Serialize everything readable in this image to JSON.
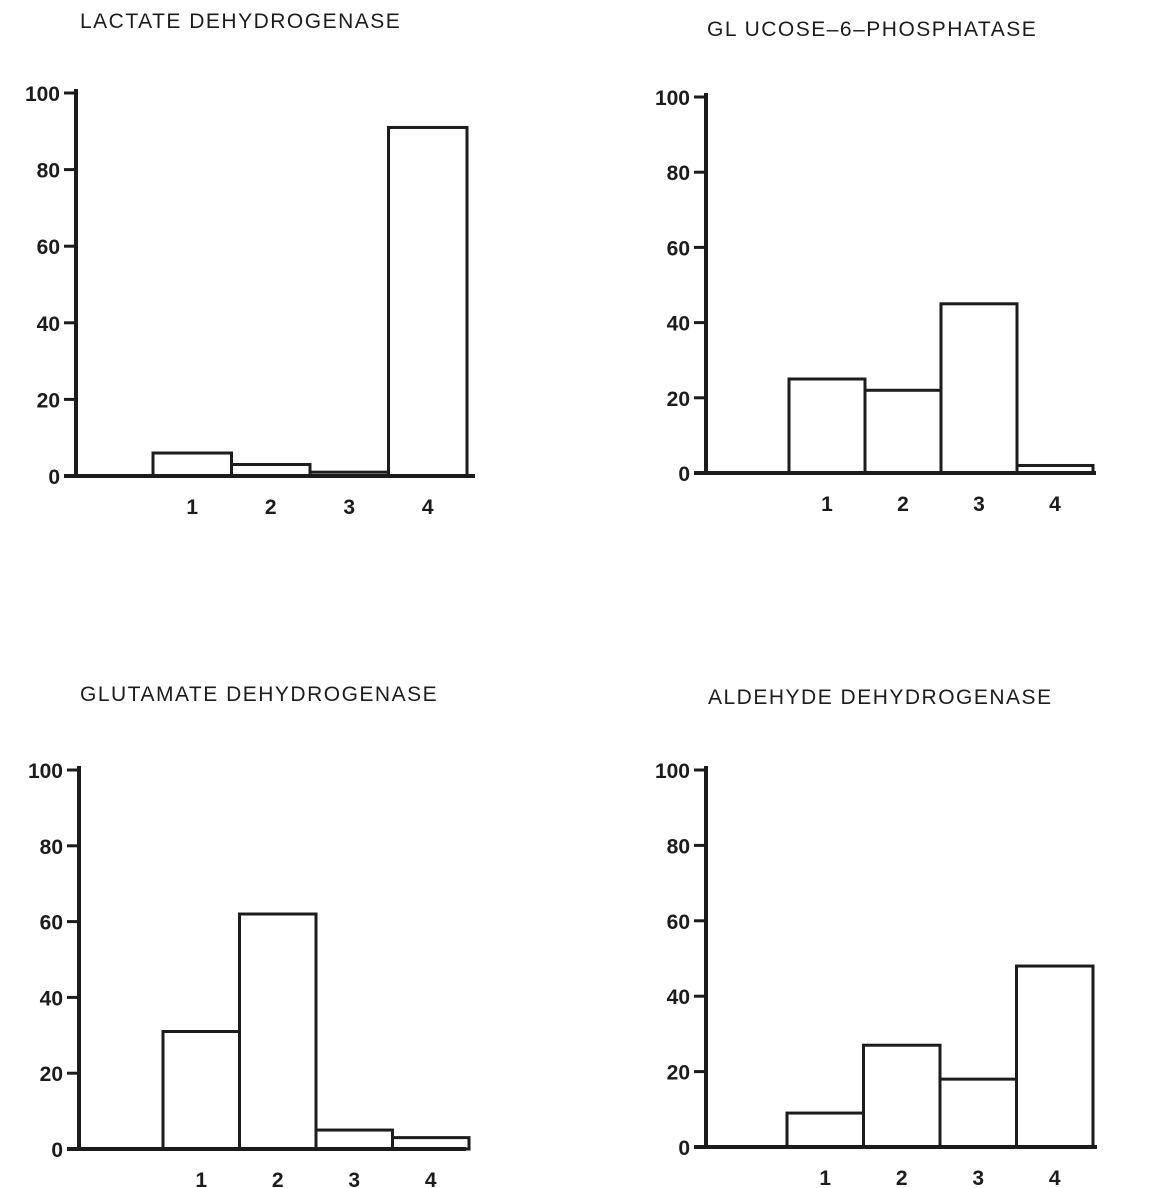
{
  "chart_data": [
    {
      "type": "bar",
      "title": "LACTATE DEHYDROGENASE",
      "categories": [
        "1",
        "2",
        "3",
        "4"
      ],
      "values": [
        6,
        3,
        1,
        91
      ],
      "yticks": [
        "0",
        "20",
        "40",
        "60",
        "80",
        "100"
      ],
      "ylim": [
        0,
        100
      ],
      "xlabel": "",
      "ylabel": "",
      "grid": false
    },
    {
      "type": "bar",
      "title": "GL UCOSE–6–PHOSPHATASE",
      "categories": [
        "1",
        "2",
        "3",
        "4"
      ],
      "values": [
        25,
        22,
        45,
        2
      ],
      "yticks": [
        "0",
        "20",
        "40",
        "60",
        "80",
        "100"
      ],
      "ylim": [
        0,
        100
      ],
      "xlabel": "",
      "ylabel": "",
      "grid": false
    },
    {
      "type": "bar",
      "title": "GLUTAMATE DEHYDROGENASE",
      "categories": [
        "1",
        "2",
        "3",
        "4"
      ],
      "values": [
        31,
        62,
        5,
        3
      ],
      "yticks": [
        "0",
        "20",
        "40",
        "60",
        "80",
        "100"
      ],
      "ylim": [
        0,
        100
      ],
      "xlabel": "",
      "ylabel": "",
      "grid": false
    },
    {
      "type": "bar",
      "title": "ALDEHYDE DEHYDROGENASE",
      "categories": [
        "1",
        "2",
        "3",
        "4"
      ],
      "values": [
        9,
        27,
        18,
        48
      ],
      "yticks": [
        "0",
        "20",
        "40",
        "60",
        "80",
        "100"
      ],
      "ylim": [
        0,
        100
      ],
      "xlabel": "",
      "ylabel": "",
      "grid": false
    }
  ]
}
